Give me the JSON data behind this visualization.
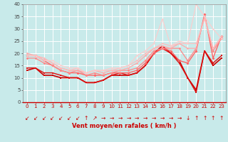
{
  "xlabel": "Vent moyen/en rafales ( km/h )",
  "xlim": [
    -0.5,
    23.5
  ],
  "ylim": [
    0,
    40
  ],
  "yticks": [
    0,
    5,
    10,
    15,
    20,
    25,
    30,
    35,
    40
  ],
  "xticks": [
    0,
    1,
    2,
    3,
    4,
    5,
    6,
    7,
    8,
    9,
    10,
    11,
    12,
    13,
    14,
    15,
    16,
    17,
    18,
    19,
    20,
    21,
    22,
    23
  ],
  "bg_color": "#c8eaea",
  "grid_color": "#ffffff",
  "series": [
    {
      "x": [
        0,
        1,
        2,
        3,
        4,
        5,
        6,
        7,
        8,
        9,
        10,
        11,
        12,
        13,
        14,
        15,
        16,
        17,
        18,
        19,
        20,
        21,
        22,
        23
      ],
      "y": [
        13,
        14,
        11,
        11,
        10,
        10,
        10,
        8,
        8,
        9,
        11,
        11,
        11,
        12,
        15,
        20,
        23,
        20,
        17,
        10,
        5,
        21,
        15,
        18
      ],
      "color": "#cc0000",
      "lw": 1.2,
      "marker": "s",
      "ms": 2.0
    },
    {
      "x": [
        0,
        1,
        2,
        3,
        4,
        5,
        6,
        7,
        8,
        9,
        10,
        11,
        12,
        13,
        14,
        15,
        16,
        17,
        18,
        19,
        20,
        21,
        22,
        23
      ],
      "y": [
        14,
        14,
        12,
        12,
        11,
        10,
        10,
        8,
        8,
        9,
        11,
        12,
        11,
        12,
        15,
        20,
        22,
        20,
        16,
        10,
        4,
        21,
        16,
        19
      ],
      "color": "#dd1111",
      "lw": 1.0,
      "marker": "s",
      "ms": 1.8
    },
    {
      "x": [
        0,
        1,
        2,
        3,
        4,
        5,
        6,
        7,
        8,
        9,
        10,
        11,
        12,
        13,
        14,
        15,
        16,
        17,
        18,
        19,
        20,
        21,
        22,
        23
      ],
      "y": [
        19,
        19,
        17,
        15,
        13,
        12,
        12,
        11,
        11,
        11,
        12,
        12,
        12,
        13,
        16,
        20,
        22,
        21,
        17,
        16,
        21,
        36,
        18,
        27
      ],
      "color": "#ff6666",
      "lw": 1.0,
      "marker": "D",
      "ms": 2.0
    },
    {
      "x": [
        0,
        1,
        2,
        3,
        4,
        5,
        6,
        7,
        8,
        9,
        10,
        11,
        12,
        13,
        14,
        15,
        16,
        17,
        18,
        19,
        20,
        21,
        22,
        23
      ],
      "y": [
        18,
        18,
        16,
        15,
        13,
        12,
        13,
        11,
        12,
        11,
        12,
        13,
        13,
        14,
        17,
        21,
        22,
        22,
        22,
        17,
        22,
        35,
        21,
        26
      ],
      "color": "#ff8888",
      "lw": 0.9,
      "marker": "D",
      "ms": 1.8
    },
    {
      "x": [
        0,
        1,
        2,
        3,
        4,
        5,
        6,
        7,
        8,
        9,
        10,
        11,
        12,
        13,
        14,
        15,
        16,
        17,
        18,
        19,
        20,
        21,
        22,
        23
      ],
      "y": [
        20,
        19,
        18,
        16,
        14,
        13,
        13,
        12,
        13,
        12,
        13,
        13,
        14,
        16,
        19,
        22,
        23,
        22,
        24,
        22,
        22,
        35,
        22,
        26
      ],
      "color": "#ffaaaa",
      "lw": 0.9,
      "marker": "D",
      "ms": 1.6
    },
    {
      "x": [
        0,
        1,
        2,
        3,
        4,
        5,
        6,
        7,
        8,
        9,
        10,
        11,
        12,
        13,
        14,
        15,
        16,
        17,
        18,
        19,
        20,
        21,
        22,
        23
      ],
      "y": [
        19,
        19,
        18,
        16,
        14,
        13,
        14,
        12,
        13,
        13,
        13,
        14,
        15,
        17,
        20,
        22,
        24,
        23,
        24,
        24,
        24,
        34,
        22,
        27
      ],
      "color": "#ffbbbb",
      "lw": 0.8,
      "marker": "D",
      "ms": 1.5
    },
    {
      "x": [
        0,
        1,
        2,
        3,
        4,
        5,
        6,
        7,
        8,
        9,
        10,
        11,
        12,
        13,
        14,
        15,
        16,
        17,
        18,
        19,
        20,
        21,
        22,
        23
      ],
      "y": [
        19,
        19,
        17,
        17,
        15,
        14,
        14,
        12,
        13,
        13,
        14,
        14,
        15,
        19,
        21,
        24,
        34,
        23,
        25,
        24,
        40,
        35,
        30,
        26
      ],
      "color": "#ffcccc",
      "lw": 0.8,
      "marker": "D",
      "ms": 1.4
    }
  ],
  "wind_symbols": [
    "↙",
    "↙",
    "↙",
    "↙",
    "↙",
    "↙",
    "↙",
    "↑",
    "↗",
    "→",
    "→",
    "→",
    "→",
    "→",
    "→",
    "→",
    "→",
    "→",
    "→",
    "↓",
    "↑",
    "↑",
    "↑",
    "↑"
  ]
}
